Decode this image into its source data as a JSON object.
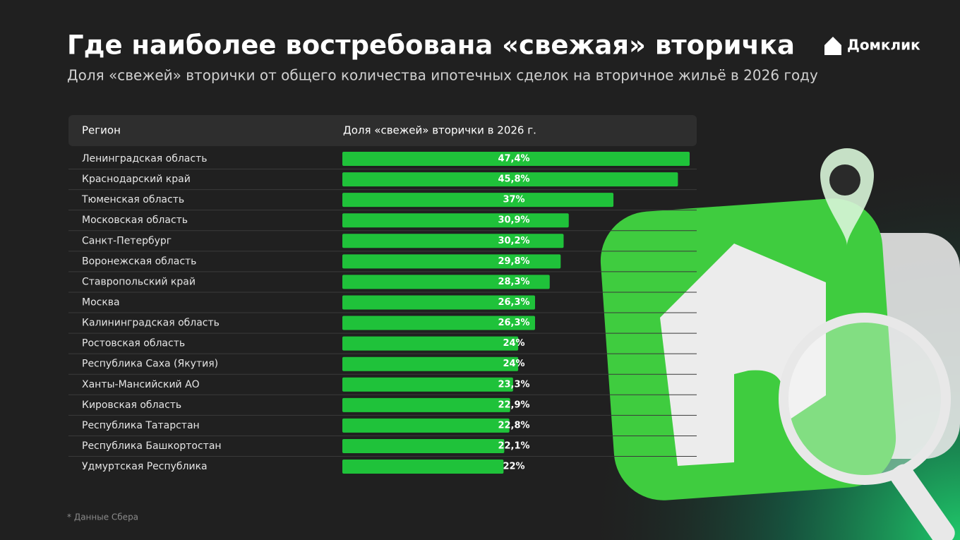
{
  "brand": "Домклик",
  "chart_data": {
    "type": "bar",
    "orientation": "horizontal",
    "title": "Где наиболее востребована «свежая» вторичка",
    "subtitle": "Доля «свежей» вторички от общего количества ипотечных сделок на вторичное жильё в 2026 году",
    "header": [
      "Регион",
      "Доля «свежей» вторички в 2026 г."
    ],
    "categories": [
      "Ленинградская область",
      "Краснодарский край",
      "Тюменская область",
      "Московская область",
      "Санкт-Петербург",
      "Воронежская область",
      "Ставропольский край",
      "Москва",
      "Калининградская область",
      "Ростовская область",
      "Республика Саха (Якутия)",
      "Ханты-Мансийский АО",
      "Кировская область",
      "Республика Татарстан",
      "Республика Башкортостан",
      "Удмуртская Республика"
    ],
    "values": [
      47.4,
      45.8,
      37,
      30.9,
      30.2,
      29.8,
      28.3,
      26.3,
      26.3,
      24,
      24,
      23.3,
      22.9,
      22.8,
      22.1,
      22
    ],
    "value_labels": [
      "47,4%",
      "45,8%",
      "37%",
      "30,9%",
      "30,2%",
      "29,8%",
      "28,3%",
      "26,3%",
      "26,3%",
      "24%",
      "24%",
      "23,3%",
      "22,9%",
      "22,8%",
      "22,1%",
      "22%"
    ],
    "color": "#1fc23a",
    "footnote": "* Данные Сбера"
  }
}
